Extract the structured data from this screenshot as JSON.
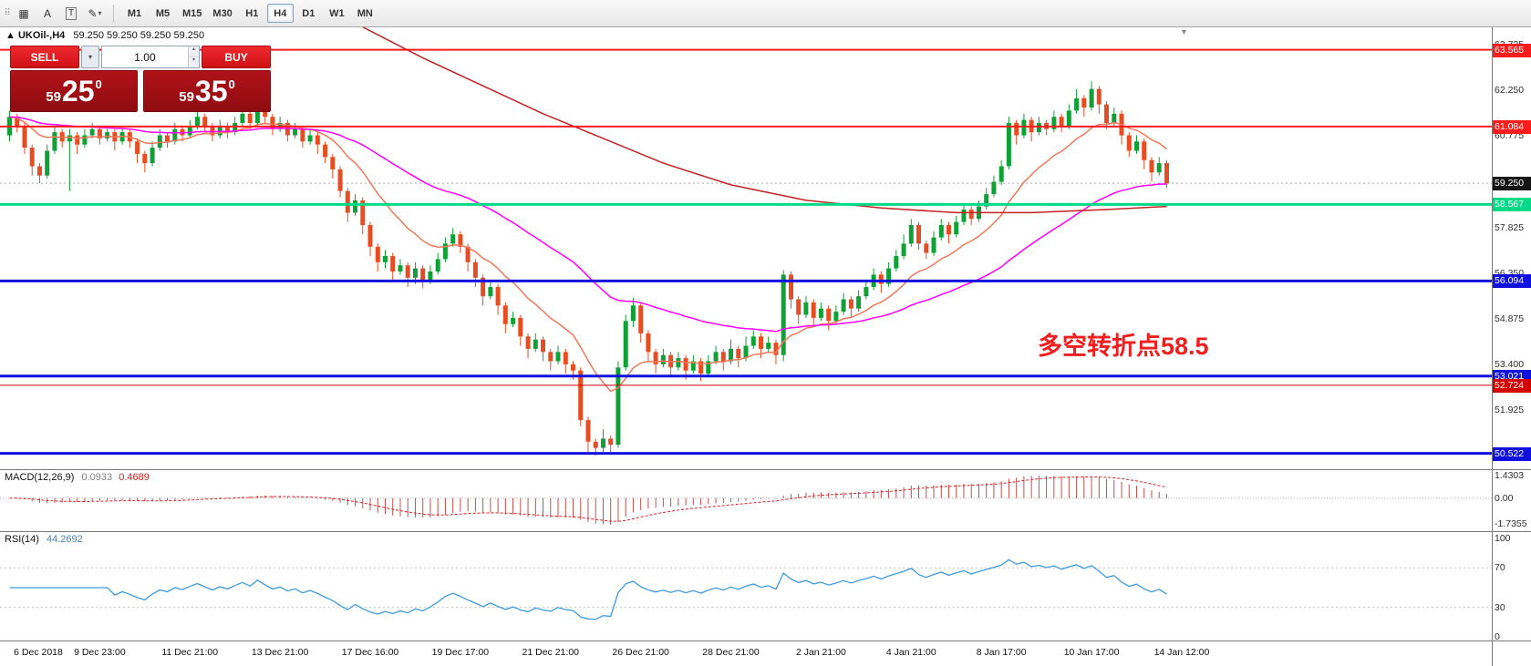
{
  "toolbar": {
    "drag_handle": "⠿",
    "tools": [
      {
        "name": "pattern-stamp",
        "glyph": "▦"
      },
      {
        "name": "text-label",
        "glyph": "A"
      },
      {
        "name": "text-box",
        "glyph": "T"
      },
      {
        "name": "drawing-tool",
        "glyph": "✎",
        "dropdown": "▾"
      }
    ],
    "timeframes": [
      {
        "label": "M1"
      },
      {
        "label": "M5"
      },
      {
        "label": "M15"
      },
      {
        "label": "M30"
      },
      {
        "label": "H1"
      },
      {
        "label": "H4",
        "active": true
      },
      {
        "label": "D1"
      },
      {
        "label": "W1"
      },
      {
        "label": "MN"
      }
    ]
  },
  "chart": {
    "marker": "▲",
    "shift_marker": "▼",
    "symbol_title": "UKOil-,H4",
    "ohlc_text": "59.250 59.250 59.250 59.250",
    "annotation": "多空转折点58.5",
    "trade_panel": {
      "sell_label": "SELL",
      "buy_label": "BUY",
      "volume": "1.00",
      "spin_up": "▴",
      "spin_down": "▾",
      "dropdown_arrow": "▾",
      "sell_price": {
        "small": "59",
        "big": "25",
        "sup": "0"
      },
      "buy_price": {
        "small": "59",
        "big": "35",
        "sup": "0"
      }
    }
  },
  "chart_data": {
    "type": "candlestick",
    "symbol": "UKOil-",
    "timeframe": "H4",
    "title": "UKOil-,H4 59.250 59.250 59.250 59.250",
    "colors": {
      "up": "#0fa136",
      "down": "#e84d22",
      "ema_fast": "#f07858",
      "ema_slow": "#ff00ff",
      "ma_long": "#c32222",
      "rsi": "#3f9be0",
      "macd_hist": "#c0504d",
      "macd_signal": "#e02020",
      "level_red": "#fe1c1c",
      "level_green": "#00d986",
      "level_blue": "#1111dd",
      "level_darkred": "#d40000",
      "bid_badge": "#151515"
    },
    "price_axis": {
      "ticks": [
        63.725,
        62.25,
        60.775,
        59.3,
        57.825,
        56.35,
        54.875,
        53.4,
        51.925,
        50.45
      ],
      "levels": [
        {
          "price": 59.25,
          "label": "59.250",
          "color": "#151515",
          "line_width": 1,
          "line_style": "dotted",
          "line_color": "#a8a8a8",
          "under": true
        },
        {
          "price": 63.565,
          "label": "63.565",
          "color": "#fe1c1c",
          "line_width": 2
        },
        {
          "price": 61.084,
          "label": "61.084",
          "color": "#fe1c1c",
          "line_width": 2
        },
        {
          "price": 58.567,
          "label": "58.567",
          "color": "#00d986",
          "line_width": 3
        },
        {
          "price": 56.094,
          "label": "56.094",
          "color": "#1111dd",
          "line_width": 3
        },
        {
          "price": 53.021,
          "label": "53.021",
          "color": "#1111dd",
          "line_width": 3
        },
        {
          "price": 52.724,
          "label": "52.724",
          "color": "#d40000",
          "line_width": 1
        },
        {
          "price": 50.522,
          "label": "50.522",
          "color": "#1111dd",
          "line_width": 3
        }
      ]
    },
    "candles_ohlc": [
      [
        60.8,
        61.6,
        60.6,
        61.4
      ],
      [
        61.4,
        61.5,
        60.9,
        61.1
      ],
      [
        61.1,
        61.2,
        60.2,
        60.4
      ],
      [
        60.4,
        60.5,
        59.5,
        59.8
      ],
      [
        59.8,
        59.9,
        59.25,
        59.5
      ],
      [
        59.5,
        60.5,
        59.4,
        60.3
      ],
      [
        60.3,
        61.1,
        60.2,
        60.9
      ],
      [
        60.9,
        61.0,
        60.4,
        60.6
      ],
      [
        60.6,
        61.0,
        59.0,
        60.8
      ],
      [
        60.8,
        60.9,
        60.2,
        60.5
      ],
      [
        60.5,
        61.0,
        60.4,
        60.8
      ],
      [
        60.8,
        61.2,
        60.7,
        61.0
      ],
      [
        61.0,
        61.1,
        60.5,
        60.7
      ],
      [
        60.7,
        61.1,
        60.6,
        60.9
      ],
      [
        60.9,
        61.0,
        60.3,
        60.6
      ],
      [
        60.6,
        61.1,
        60.5,
        60.9
      ],
      [
        60.9,
        61.0,
        60.4,
        60.6
      ],
      [
        60.6,
        60.7,
        59.9,
        60.2
      ],
      [
        60.2,
        60.3,
        59.6,
        59.9
      ],
      [
        59.9,
        60.6,
        59.8,
        60.4
      ],
      [
        60.4,
        61.0,
        60.3,
        60.8
      ],
      [
        60.8,
        60.9,
        60.4,
        60.6
      ],
      [
        60.6,
        61.2,
        60.5,
        61.0
      ],
      [
        61.0,
        61.1,
        60.6,
        60.8
      ],
      [
        60.8,
        61.3,
        60.7,
        61.1
      ],
      [
        61.1,
        61.6,
        61.0,
        61.4
      ],
      [
        61.4,
        61.5,
        60.9,
        61.1
      ],
      [
        61.1,
        61.2,
        60.6,
        60.8
      ],
      [
        60.8,
        61.3,
        60.7,
        61.1
      ],
      [
        61.1,
        61.2,
        60.7,
        60.9
      ],
      [
        60.9,
        61.4,
        60.8,
        61.2
      ],
      [
        61.2,
        61.7,
        61.1,
        61.5
      ],
      [
        61.5,
        61.6,
        61.0,
        61.2
      ],
      [
        61.2,
        62.0,
        61.1,
        61.8
      ],
      [
        61.8,
        61.9,
        61.2,
        61.4
      ],
      [
        61.4,
        61.5,
        60.8,
        61.0
      ],
      [
        61.0,
        61.4,
        60.9,
        61.2
      ],
      [
        61.2,
        61.3,
        60.6,
        60.8
      ],
      [
        60.8,
        61.2,
        60.7,
        61.0
      ],
      [
        61.0,
        61.1,
        60.4,
        60.6
      ],
      [
        60.6,
        61.0,
        60.5,
        60.8
      ],
      [
        60.8,
        60.9,
        60.2,
        60.5
      ],
      [
        60.5,
        60.6,
        59.9,
        60.1
      ],
      [
        60.1,
        60.2,
        59.4,
        59.7
      ],
      [
        59.7,
        59.8,
        58.8,
        59.0
      ],
      [
        59.0,
        59.1,
        58.0,
        58.3
      ],
      [
        58.3,
        58.9,
        58.2,
        58.7
      ],
      [
        58.7,
        58.8,
        57.6,
        57.9
      ],
      [
        57.9,
        58.0,
        56.9,
        57.2
      ],
      [
        57.2,
        57.3,
        56.4,
        56.7
      ],
      [
        56.7,
        57.1,
        56.5,
        56.9
      ],
      [
        56.9,
        57.0,
        56.1,
        56.4
      ],
      [
        56.4,
        56.8,
        56.3,
        56.6
      ],
      [
        56.6,
        56.7,
        55.9,
        56.2
      ],
      [
        56.2,
        56.7,
        56.0,
        56.5
      ],
      [
        56.5,
        56.6,
        55.85,
        56.1
      ],
      [
        56.1,
        56.6,
        56.0,
        56.4
      ],
      [
        56.4,
        57.0,
        56.3,
        56.8
      ],
      [
        56.8,
        57.5,
        56.7,
        57.3
      ],
      [
        57.3,
        57.8,
        57.2,
        57.6
      ],
      [
        57.6,
        57.7,
        57.0,
        57.2
      ],
      [
        57.2,
        57.3,
        56.4,
        56.7
      ],
      [
        56.7,
        56.8,
        55.9,
        56.2
      ],
      [
        56.2,
        56.3,
        55.3,
        55.6
      ],
      [
        55.6,
        56.1,
        55.5,
        55.9
      ],
      [
        55.9,
        56.0,
        55.0,
        55.3
      ],
      [
        55.3,
        55.4,
        54.4,
        54.7
      ],
      [
        54.7,
        55.1,
        54.6,
        54.9
      ],
      [
        54.9,
        55.0,
        54.0,
        54.3
      ],
      [
        54.3,
        54.4,
        53.6,
        53.9
      ],
      [
        53.9,
        54.4,
        53.8,
        54.2
      ],
      [
        54.2,
        54.3,
        53.5,
        53.8
      ],
      [
        53.8,
        53.9,
        53.2,
        53.5
      ],
      [
        53.5,
        54.0,
        53.4,
        53.8
      ],
      [
        53.8,
        53.9,
        53.1,
        53.4
      ],
      [
        53.4,
        53.5,
        52.9,
        53.2
      ],
      [
        53.2,
        53.3,
        51.4,
        51.6
      ],
      [
        51.6,
        51.7,
        50.55,
        50.9
      ],
      [
        50.9,
        51.0,
        50.45,
        50.7
      ],
      [
        50.7,
        51.3,
        50.5,
        51.0
      ],
      [
        51.0,
        51.1,
        50.5,
        50.8
      ],
      [
        50.8,
        53.5,
        50.7,
        53.3
      ],
      [
        53.3,
        55.0,
        53.2,
        54.8
      ],
      [
        54.8,
        55.55,
        54.6,
        55.3
      ],
      [
        55.3,
        55.4,
        54.1,
        54.4
      ],
      [
        54.4,
        54.5,
        53.5,
        53.8
      ],
      [
        53.8,
        53.9,
        53.1,
        53.4
      ],
      [
        53.4,
        53.9,
        53.3,
        53.7
      ],
      [
        53.7,
        53.8,
        53.0,
        53.3
      ],
      [
        53.3,
        53.8,
        53.2,
        53.6
      ],
      [
        53.6,
        53.7,
        52.9,
        53.2
      ],
      [
        53.2,
        53.7,
        53.1,
        53.5
      ],
      [
        53.5,
        53.6,
        52.85,
        53.1
      ],
      [
        53.1,
        53.7,
        53.0,
        53.5
      ],
      [
        53.5,
        54.0,
        53.4,
        53.8
      ],
      [
        53.8,
        53.9,
        53.2,
        53.5
      ],
      [
        53.5,
        54.2,
        53.4,
        53.9
      ],
      [
        53.9,
        54.0,
        53.3,
        53.6
      ],
      [
        53.6,
        54.3,
        53.5,
        54.0
      ],
      [
        54.0,
        54.5,
        53.9,
        54.3
      ],
      [
        54.3,
        54.4,
        53.6,
        53.9
      ],
      [
        53.9,
        54.3,
        53.8,
        54.1
      ],
      [
        54.1,
        54.2,
        53.4,
        53.7
      ],
      [
        53.7,
        56.45,
        53.5,
        56.3
      ],
      [
        56.3,
        56.4,
        55.2,
        55.5
      ],
      [
        55.5,
        55.6,
        54.7,
        55.0
      ],
      [
        55.0,
        55.6,
        54.9,
        55.4
      ],
      [
        55.4,
        55.5,
        54.6,
        54.9
      ],
      [
        54.9,
        55.4,
        54.8,
        55.2
      ],
      [
        55.2,
        55.3,
        54.5,
        54.8
      ],
      [
        54.8,
        55.3,
        54.7,
        55.1
      ],
      [
        55.1,
        55.7,
        55.0,
        55.5
      ],
      [
        55.5,
        55.6,
        54.9,
        55.2
      ],
      [
        55.2,
        55.8,
        55.1,
        55.6
      ],
      [
        55.6,
        56.1,
        55.5,
        55.9
      ],
      [
        55.9,
        56.5,
        55.8,
        56.3
      ],
      [
        56.3,
        56.4,
        55.7,
        56.0
      ],
      [
        56.0,
        56.7,
        55.9,
        56.5
      ],
      [
        56.5,
        57.1,
        56.4,
        56.9
      ],
      [
        56.9,
        57.6,
        56.8,
        57.3
      ],
      [
        57.3,
        58.1,
        57.2,
        57.9
      ],
      [
        57.9,
        58.0,
        57.1,
        57.3
      ],
      [
        57.3,
        57.4,
        56.8,
        57.0
      ],
      [
        57.0,
        57.7,
        56.9,
        57.5
      ],
      [
        57.5,
        58.1,
        57.4,
        57.9
      ],
      [
        57.9,
        58.0,
        57.3,
        57.6
      ],
      [
        57.6,
        58.2,
        57.5,
        58.0
      ],
      [
        58.0,
        58.6,
        57.9,
        58.4
      ],
      [
        58.4,
        58.5,
        57.9,
        58.1
      ],
      [
        58.1,
        58.7,
        58.0,
        58.5
      ],
      [
        58.5,
        59.1,
        58.4,
        58.9
      ],
      [
        58.9,
        59.5,
        58.8,
        59.3
      ],
      [
        59.3,
        60.0,
        59.2,
        59.8
      ],
      [
        59.8,
        61.4,
        59.7,
        61.2
      ],
      [
        61.2,
        61.3,
        60.5,
        60.8
      ],
      [
        60.8,
        61.5,
        60.7,
        61.3
      ],
      [
        61.3,
        61.4,
        60.6,
        60.9
      ],
      [
        60.9,
        61.4,
        60.8,
        61.2
      ],
      [
        61.2,
        61.3,
        60.8,
        61.0
      ],
      [
        61.0,
        61.6,
        60.9,
        61.4
      ],
      [
        61.4,
        61.5,
        60.9,
        61.1
      ],
      [
        61.1,
        61.8,
        61.0,
        61.6
      ],
      [
        61.6,
        62.3,
        61.5,
        62.0
      ],
      [
        62.0,
        62.1,
        61.4,
        61.7
      ],
      [
        61.7,
        62.55,
        61.6,
        62.3
      ],
      [
        62.3,
        62.4,
        61.5,
        61.8
      ],
      [
        61.8,
        61.9,
        61.0,
        61.2
      ],
      [
        61.2,
        61.7,
        61.1,
        61.5
      ],
      [
        61.5,
        61.6,
        60.5,
        60.8
      ],
      [
        60.8,
        60.9,
        60.1,
        60.3
      ],
      [
        60.3,
        60.8,
        60.2,
        60.6
      ],
      [
        60.6,
        60.7,
        59.7,
        60.0
      ],
      [
        60.0,
        60.1,
        59.3,
        59.6
      ],
      [
        59.6,
        60.1,
        59.5,
        59.9
      ],
      [
        59.9,
        60.0,
        59.1,
        59.25
      ]
    ],
    "ma_lines": [
      {
        "name": "ema-fast",
        "type": "ema",
        "period": 13,
        "color": "#f07858"
      },
      {
        "name": "ema-slow",
        "type": "ema",
        "period": 45,
        "color": "#ff00ff"
      },
      {
        "name": "ma-long",
        "type": "points",
        "color": "#c32222",
        "points": [
          [
            47,
            64.3
          ],
          [
            55,
            63.3
          ],
          [
            63,
            62.4
          ],
          [
            71,
            61.5
          ],
          [
            79,
            60.7
          ],
          [
            87,
            59.9
          ],
          [
            96,
            59.2
          ],
          [
            106,
            58.7
          ],
          [
            116,
            58.45
          ],
          [
            126,
            58.3
          ],
          [
            136,
            58.3
          ],
          [
            146,
            58.4
          ],
          [
            154,
            58.5
          ]
        ]
      }
    ],
    "time_labels": [
      {
        "i": 0,
        "label": "6 Dec 2018"
      },
      {
        "i": 12,
        "label": "9 Dec 23:00"
      },
      {
        "i": 24,
        "label": "11 Dec 21:00"
      },
      {
        "i": 36,
        "label": "13 Dec 21:00"
      },
      {
        "i": 48,
        "label": "17 Dec 16:00"
      },
      {
        "i": 60,
        "label": "19 Dec 17:00"
      },
      {
        "i": 72,
        "label": "21 Dec 21:00"
      },
      {
        "i": 84,
        "label": "26 Dec 21:00"
      },
      {
        "i": 96,
        "label": "28 Dec 21:00"
      },
      {
        "i": 108,
        "label": "2 Jan 21:00"
      },
      {
        "i": 120,
        "label": "4 Jan 21:00"
      },
      {
        "i": 132,
        "label": "8 Jan 17:00"
      },
      {
        "i": 144,
        "label": "10 Jan 17:00"
      },
      {
        "i": 156,
        "label": "14 Jan 12:00"
      }
    ],
    "macd": {
      "label": "MACD(12,26,9)",
      "value_main": "0.0933",
      "value_signal": "0.4689",
      "params": [
        12,
        26,
        9
      ],
      "axis_max": "1.4303",
      "axis_zero": "0.00",
      "axis_min": "-1.7355"
    },
    "rsi": {
      "label": "RSI(14)",
      "value": "44.2692",
      "period": 14,
      "axis": [
        "100",
        "70",
        "30",
        "0"
      ],
      "levels": [
        70,
        30
      ]
    }
  }
}
